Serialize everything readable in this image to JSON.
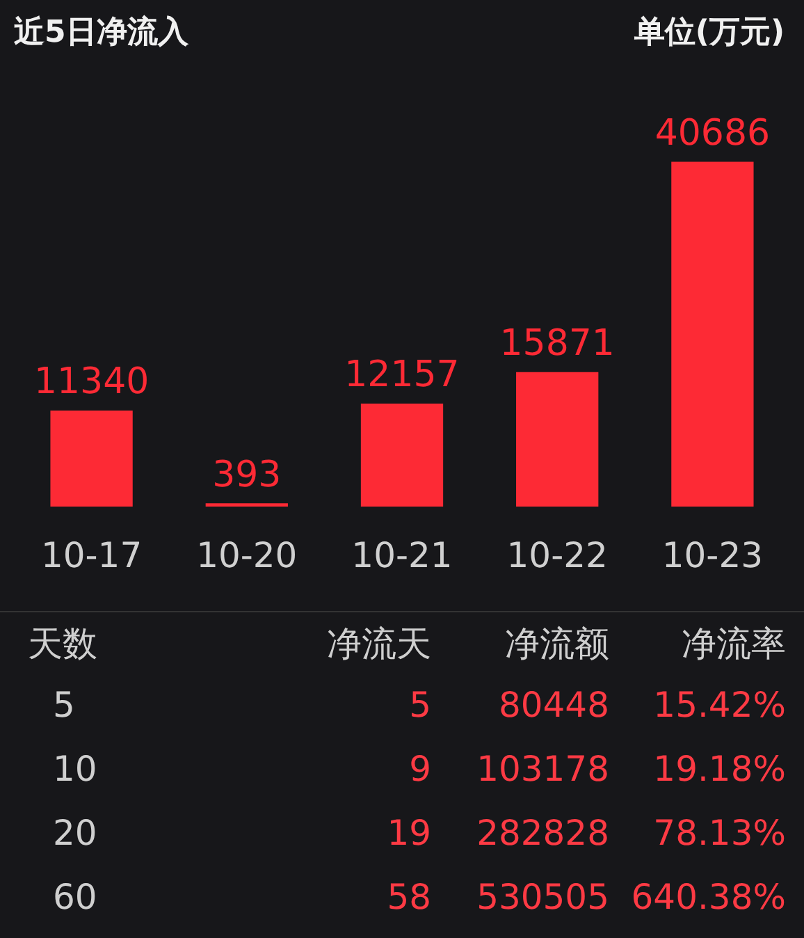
{
  "chart_data": [
    {
      "type": "bar",
      "title": "近5日净流入",
      "annotations": [
        "单位(万元)"
      ],
      "categories": [
        "10-17",
        "10-20",
        "10-21",
        "10-22",
        "10-23"
      ],
      "values": [
        11340,
        393,
        12157,
        15871,
        40686
      ],
      "color": "#fd2a35",
      "data_labels": true,
      "legend": false,
      "tick_labels": "x"
    },
    {
      "type": "other",
      "annotations": [
        "天数",
        "净流天",
        "净流额",
        "净流率",
        "5",
        "5",
        "80448",
        "15.42%",
        "10",
        "9",
        "103178",
        "19.18%",
        "20",
        "19",
        "282828",
        "78.13%",
        "60",
        "58",
        "530505",
        "640.38%"
      ]
    }
  ]
}
